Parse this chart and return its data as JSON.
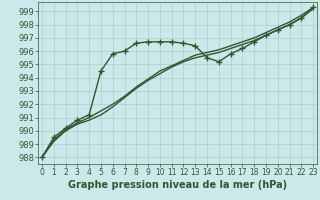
{
  "xlabel": "Graphe pression niveau de la mer (hPa)",
  "background_color": "#cce8ea",
  "line_color": "#2d5a2d",
  "grid_color": "#b0cccc",
  "x_values": [
    0,
    1,
    2,
    3,
    4,
    5,
    6,
    7,
    8,
    9,
    10,
    11,
    12,
    13,
    14,
    15,
    16,
    17,
    18,
    19,
    20,
    21,
    22,
    23
  ],
  "series_marker": [
    988.0,
    989.5,
    990.2,
    990.8,
    991.2,
    994.5,
    995.8,
    996.0,
    996.6,
    996.7,
    996.7,
    996.7,
    996.6,
    996.4,
    995.5,
    995.2,
    995.8,
    996.2,
    996.7,
    997.2,
    997.6,
    998.0,
    998.5,
    999.3
  ],
  "series_smooth1": [
    988.0,
    989.2,
    990.0,
    990.5,
    990.8,
    991.2,
    991.8,
    992.5,
    993.2,
    993.8,
    994.3,
    994.8,
    995.2,
    995.5,
    995.7,
    995.9,
    996.2,
    996.5,
    996.8,
    997.2,
    997.6,
    998.0,
    998.5,
    999.2
  ],
  "series_smooth2": [
    988.0,
    989.3,
    990.1,
    990.6,
    991.0,
    991.5,
    992.0,
    992.6,
    993.3,
    993.9,
    994.5,
    994.9,
    995.3,
    995.7,
    995.9,
    996.1,
    996.4,
    996.7,
    997.0,
    997.4,
    997.8,
    998.2,
    998.7,
    999.3
  ],
  "ylim": [
    987.5,
    999.7
  ],
  "yticks": [
    988,
    989,
    990,
    991,
    992,
    993,
    994,
    995,
    996,
    997,
    998,
    999
  ],
  "xticks": [
    0,
    1,
    2,
    3,
    4,
    5,
    6,
    7,
    8,
    9,
    10,
    11,
    12,
    13,
    14,
    15,
    16,
    17,
    18,
    19,
    20,
    21,
    22,
    23
  ],
  "marker": "P",
  "marker_size": 3.0,
  "linewidth": 1.0,
  "xlabel_fontsize": 7,
  "tick_fontsize": 5.5
}
